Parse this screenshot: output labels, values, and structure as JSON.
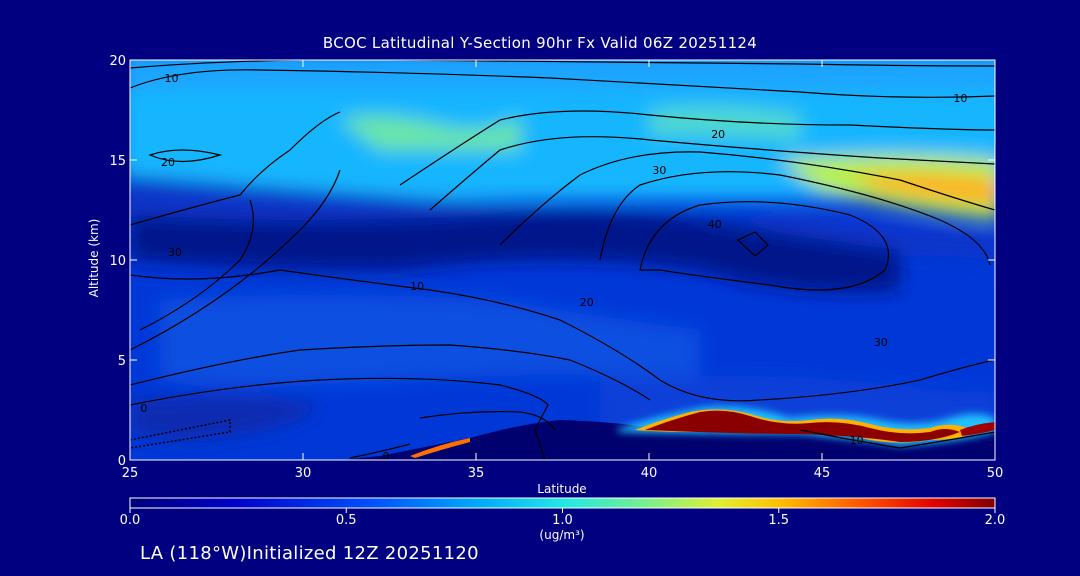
{
  "chart_data": {
    "type": "heatmap",
    "title": "BCOC Latitudinal Y-Section 90hr  Fx Valid 06Z 20251124",
    "xlabel": "Latitude",
    "ylabel": "Altitude (km)",
    "xlim": [
      25,
      50
    ],
    "ylim": [
      0,
      20
    ],
    "x_ticks": [
      "25",
      "30",
      "35",
      "40",
      "45",
      "50"
    ],
    "y_ticks": [
      "0",
      "5",
      "10",
      "15",
      "20"
    ],
    "colorbar": {
      "min": 0.0,
      "max": 2.0,
      "ticks": [
        "0.0",
        "0.5",
        "1.0",
        "1.5",
        "2.0"
      ],
      "units": "(ug/m³)"
    },
    "contour_labels": [
      {
        "text": "10",
        "lat": 26.2,
        "alt": 19.1
      },
      {
        "text": "10",
        "lat": 49.0,
        "alt": 18.1
      },
      {
        "text": "20",
        "lat": 26.1,
        "alt": 14.9
      },
      {
        "text": "20",
        "lat": 42.0,
        "alt": 16.3
      },
      {
        "text": "30",
        "lat": 40.3,
        "alt": 14.5
      },
      {
        "text": "40",
        "lat": 41.9,
        "alt": 11.8
      },
      {
        "text": "30",
        "lat": 26.3,
        "alt": 10.4
      },
      {
        "text": "10",
        "lat": 33.3,
        "alt": 8.7
      },
      {
        "text": "20",
        "lat": 38.2,
        "alt": 7.9
      },
      {
        "text": "30",
        "lat": 46.7,
        "alt": 5.9
      },
      {
        "text": "0",
        "lat": 25.4,
        "alt": 2.6
      },
      {
        "text": "0",
        "lat": 32.4,
        "alt": 0.2
      },
      {
        "text": "10",
        "lat": 46.0,
        "alt": 1.0
      }
    ]
  },
  "footer": "LA (118°W)Initialized 12Z 20251120"
}
